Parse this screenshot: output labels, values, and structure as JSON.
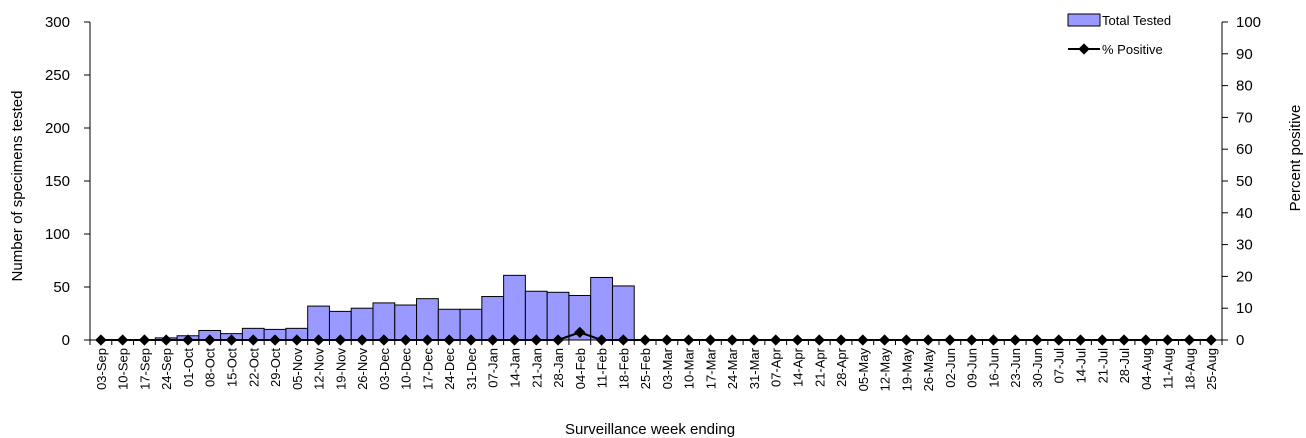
{
  "chart_data": {
    "type": "bar",
    "title": "",
    "xlabel": "Surveillance week ending",
    "ylabel": "Number of specimens tested",
    "y2label": "Percent positive",
    "ylim": [
      0,
      300
    ],
    "y_ticks": [
      "0",
      "50",
      "100",
      "150",
      "200",
      "250",
      "300"
    ],
    "y2lim": [
      0,
      100
    ],
    "y2_ticks": [
      "0",
      "10",
      "20",
      "30",
      "40",
      "50",
      "60",
      "70",
      "80",
      "90",
      "100"
    ],
    "grid": false,
    "legend_position": "top-right",
    "colors": {
      "bar_fill": "#9999ff",
      "bar_stroke": "#000000",
      "line": "#000000"
    },
    "categories": [
      "03-Sep",
      "10-Sep",
      "17-Sep",
      "24-Sep",
      "01-Oct",
      "08-Oct",
      "15-Oct",
      "22-Oct",
      "29-Oct",
      "05-Nov",
      "12-Nov",
      "19-Nov",
      "26-Nov",
      "03-Dec",
      "10-Dec",
      "17-Dec",
      "24-Dec",
      "31-Dec",
      "07-Jan",
      "14-Jan",
      "21-Jan",
      "28-Jan",
      "04-Feb",
      "11-Feb",
      "18-Feb",
      "25-Feb",
      "03-Mar",
      "10-Mar",
      "17-Mar",
      "24-Mar",
      "31-Mar",
      "07-Apr",
      "14-Apr",
      "21-Apr",
      "28-Apr",
      "05-May",
      "12-May",
      "19-May",
      "26-May",
      "02-Jun",
      "09-Jun",
      "16-Jun",
      "23-Jun",
      "30-Jun",
      "07-Jul",
      "14-Jul",
      "21-Jul",
      "28-Jul",
      "04-Aug",
      "11-Aug",
      "18-Aug",
      "25-Aug"
    ],
    "series": [
      {
        "name": "Total Tested",
        "type": "bar",
        "axis": "left",
        "values": [
          0,
          0,
          0,
          2,
          4,
          9,
          6,
          11,
          10,
          11,
          32,
          27,
          30,
          35,
          33,
          39,
          29,
          29,
          41,
          61,
          46,
          45,
          42,
          59,
          51,
          0,
          0,
          0,
          0,
          0,
          0,
          0,
          0,
          0,
          0,
          0,
          0,
          0,
          0,
          0,
          0,
          0,
          0,
          0,
          0,
          0,
          0,
          0,
          0,
          0,
          0,
          0
        ]
      },
      {
        "name": "% Positive",
        "type": "line",
        "axis": "right",
        "values": [
          0,
          0,
          0,
          0,
          0,
          0,
          0,
          0,
          0,
          0,
          0,
          0,
          0,
          0,
          0,
          0,
          0,
          0,
          0,
          0,
          0,
          0,
          2.4,
          0,
          0,
          0,
          0,
          0,
          0,
          0,
          0,
          0,
          0,
          0,
          0,
          0,
          0,
          0,
          0,
          0,
          0,
          0,
          0,
          0,
          0,
          0,
          0,
          0,
          0,
          0,
          0,
          0
        ]
      }
    ]
  }
}
